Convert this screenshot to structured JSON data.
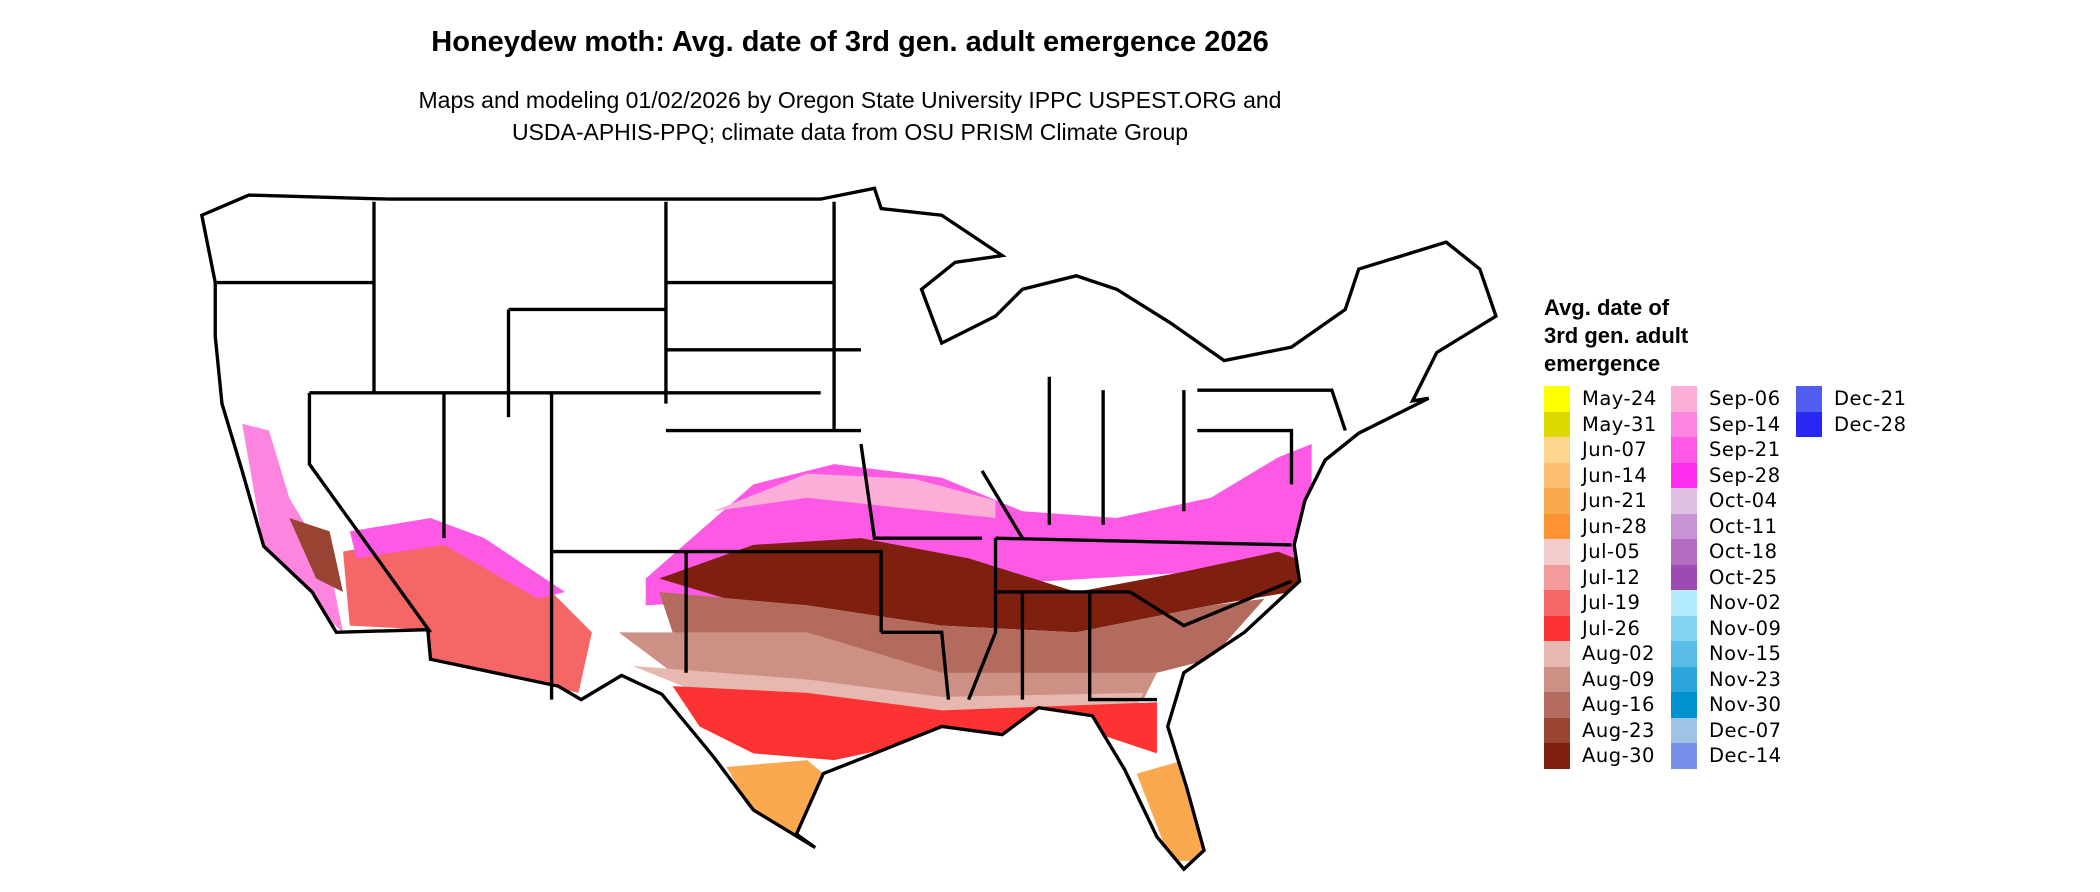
{
  "title": "Honeydew moth: Avg. date of 3rd gen. adult emergence 2026",
  "subtitle": [
    "Maps and modeling 01/02/2026 by Oregon State University IPPC USPEST.ORG and",
    "USDA-APHIS-PPQ; climate data from OSU PRISM Climate Group"
  ],
  "legend": {
    "title": [
      "Avg. date of",
      "3rd gen. adult",
      "emergence"
    ],
    "columns": [
      [
        {
          "label": "May-24",
          "color": "#ffff00"
        },
        {
          "label": "May-31",
          "color": "#dcd800"
        },
        {
          "label": "Jun-07",
          "color": "#fdd58e"
        },
        {
          "label": "Jun-14",
          "color": "#fdbf6f"
        },
        {
          "label": "Jun-21",
          "color": "#fba94f"
        },
        {
          "label": "Jun-28",
          "color": "#fd9332"
        },
        {
          "label": "Jul-05",
          "color": "#f4cccc"
        },
        {
          "label": "Jul-12",
          "color": "#f49a9a"
        },
        {
          "label": "Jul-19",
          "color": "#f56666"
        },
        {
          "label": "Jul-26",
          "color": "#fd3333"
        },
        {
          "label": "Aug-02",
          "color": "#e6b8af"
        },
        {
          "label": "Aug-09",
          "color": "#cc9184"
        },
        {
          "label": "Aug-16",
          "color": "#b36b5e"
        },
        {
          "label": "Aug-23",
          "color": "#994433"
        },
        {
          "label": "Aug-30",
          "color": "#7f1f0f"
        }
      ],
      [
        {
          "label": "Sep-06",
          "color": "#fbaed8"
        },
        {
          "label": "Sep-14",
          "color": "#fd85e0"
        },
        {
          "label": "Sep-21",
          "color": "#fd59e5"
        },
        {
          "label": "Sep-28",
          "color": "#fd2ef0"
        },
        {
          "label": "Oct-04",
          "color": "#dfbfe4"
        },
        {
          "label": "Oct-11",
          "color": "#c893d2"
        },
        {
          "label": "Oct-18",
          "color": "#b36ec2"
        },
        {
          "label": "Oct-25",
          "color": "#9e4ab4"
        },
        {
          "label": "Nov-02",
          "color": "#b3ecfe"
        },
        {
          "label": "Nov-09",
          "color": "#84d4f1"
        },
        {
          "label": "Nov-15",
          "color": "#5abde6"
        },
        {
          "label": "Nov-23",
          "color": "#2ca6da"
        },
        {
          "label": "Nov-30",
          "color": "#0091cf"
        },
        {
          "label": "Dec-07",
          "color": "#9fc3e6"
        },
        {
          "label": "Dec-14",
          "color": "#7791ea"
        }
      ],
      [
        {
          "label": "Dec-21",
          "color": "#4f5eef"
        },
        {
          "label": "Dec-28",
          "color": "#2828f5"
        }
      ]
    ]
  }
}
